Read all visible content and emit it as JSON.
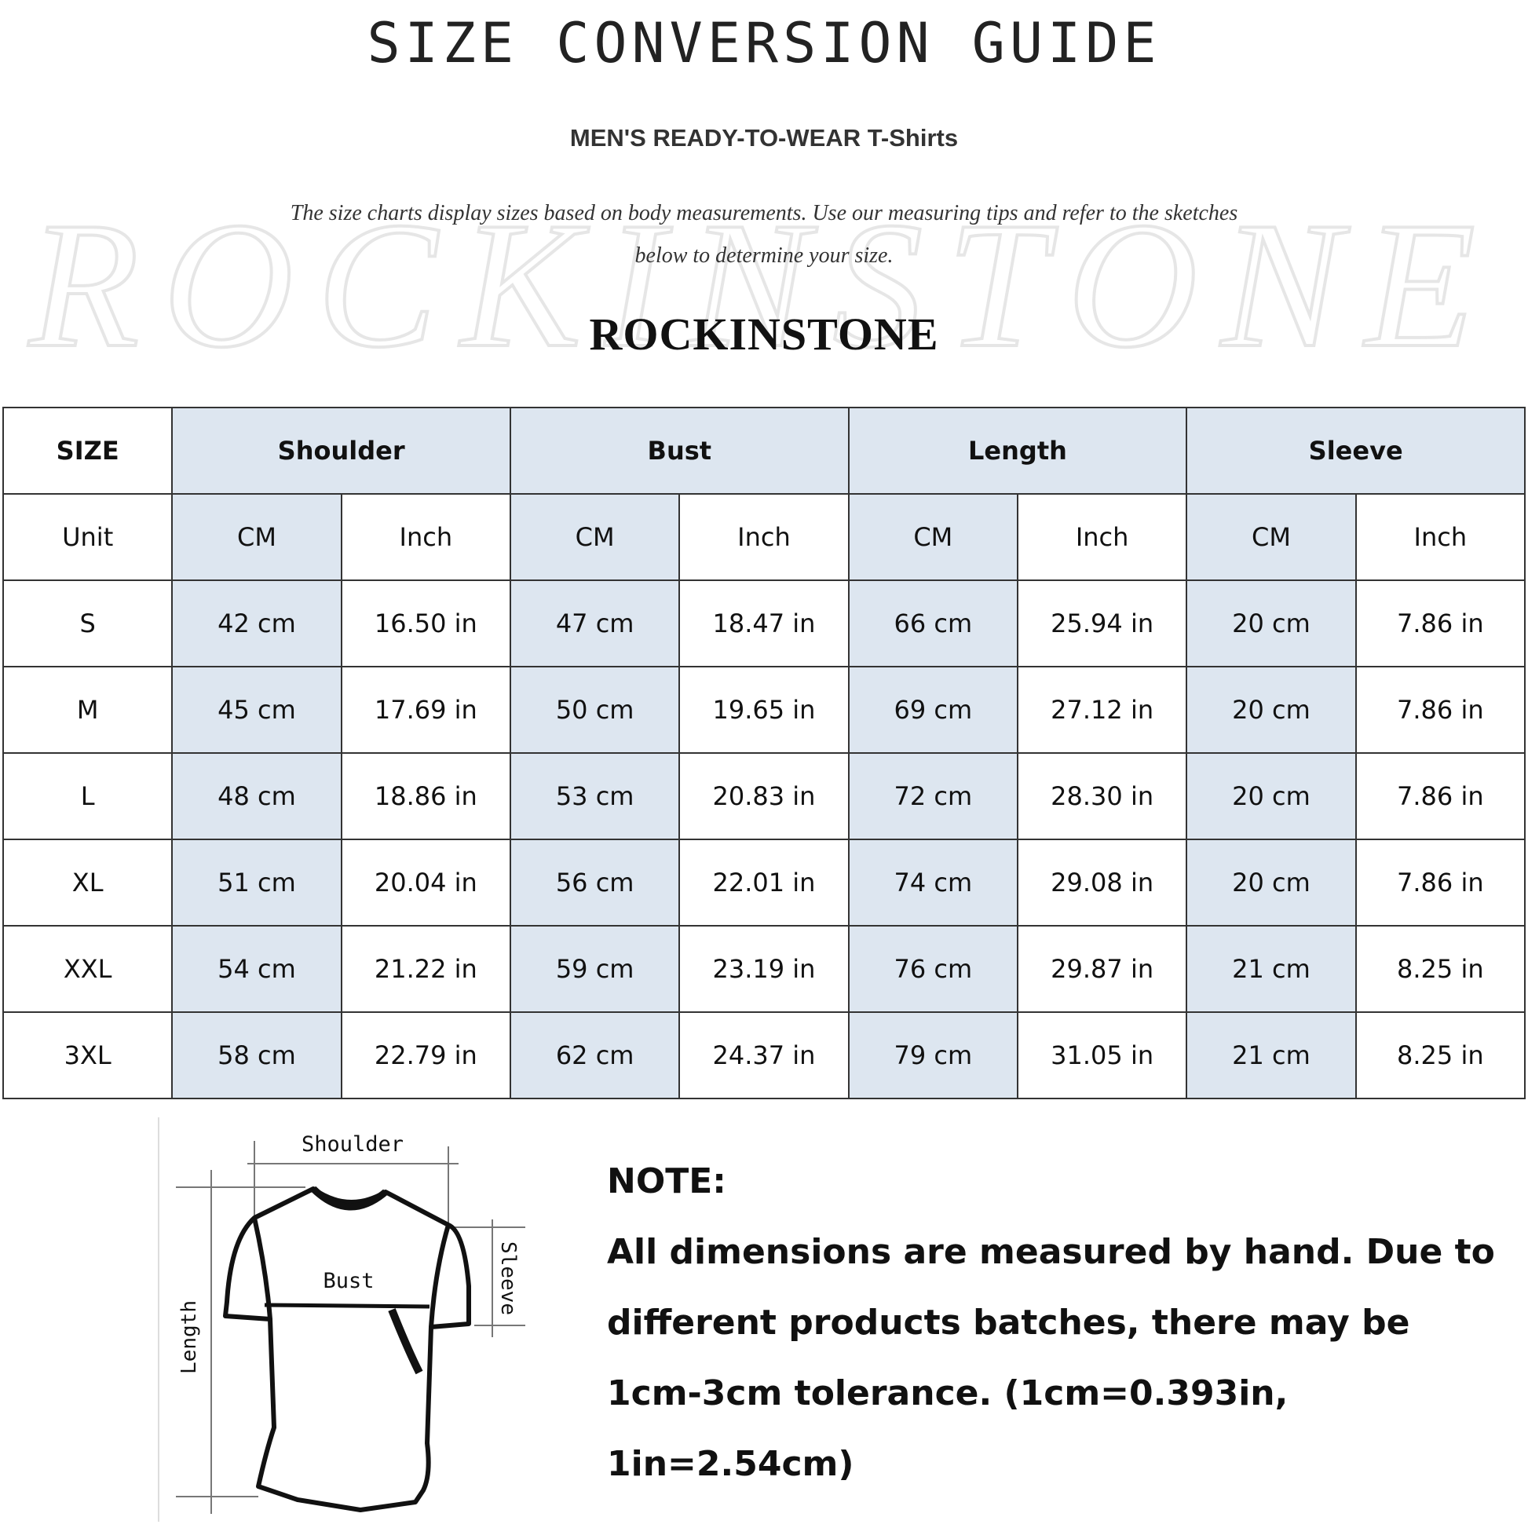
{
  "header": {
    "title": "SIZE CONVERSION GUIDE",
    "subtitle": "MEN'S READY-TO-WEAR T-Shirts",
    "intro_line1": "The size charts display sizes based on body measurements. Use our measuring tips and refer to the sketches",
    "intro_line2": "below to determine your size.",
    "brand": "ROCKINSTONE",
    "watermark": "Rockinstone"
  },
  "table": {
    "size_label": "SIZE",
    "unit_label": "Unit",
    "groups": [
      "Shoulder",
      "Bust",
      "Length",
      "Sleeve"
    ],
    "units": [
      "CM",
      "Inch",
      "CM",
      "Inch",
      "CM",
      "Inch",
      "CM",
      "Inch"
    ],
    "rows": [
      {
        "size": "S",
        "values": [
          "42 cm",
          "16.50 in",
          "47 cm",
          "18.47  in",
          "66 cm",
          "25.94  in",
          "20 cm",
          "7.86  in"
        ]
      },
      {
        "size": "M",
        "values": [
          "45 cm",
          "17.69  in",
          "50 cm",
          "19.65  in",
          "69 cm",
          "27.12  in",
          "20 cm",
          "7.86  in"
        ]
      },
      {
        "size": "L",
        "values": [
          "48 cm",
          "18.86  in",
          "53 cm",
          "20.83  in",
          "72 cm",
          "28.30  in",
          "20 cm",
          "7.86  in"
        ]
      },
      {
        "size": "XL",
        "values": [
          "51 cm",
          "20.04  in",
          "56 cm",
          "22.01  in",
          "74 cm",
          "29.08  in",
          "20 cm",
          "7.86  in"
        ]
      },
      {
        "size": "XXL",
        "values": [
          "54 cm",
          "21.22  in",
          "59 cm",
          "23.19  in",
          "76 cm",
          "29.87  in",
          "21 cm",
          "8.25  in"
        ]
      },
      {
        "size": "3XL",
        "values": [
          "58 cm",
          "22.79  in",
          "62 cm",
          "24.37  in",
          "79 cm",
          "31.05  in",
          "21 cm",
          "8.25  in"
        ]
      }
    ],
    "colors": {
      "shaded": "#dde6f0",
      "border": "#333333"
    }
  },
  "sketch": {
    "shoulder": "Shoulder",
    "bust": "Bust",
    "sleeve": "Sleeve",
    "length": "Length"
  },
  "note": {
    "heading": "NOTE:",
    "line1": "All dimensions are measured by hand. Due to",
    "line2": "different products batches, there may be",
    "line3": "1cm-3cm tolerance. (1cm=0.393in, 1in=2.54cm)"
  }
}
